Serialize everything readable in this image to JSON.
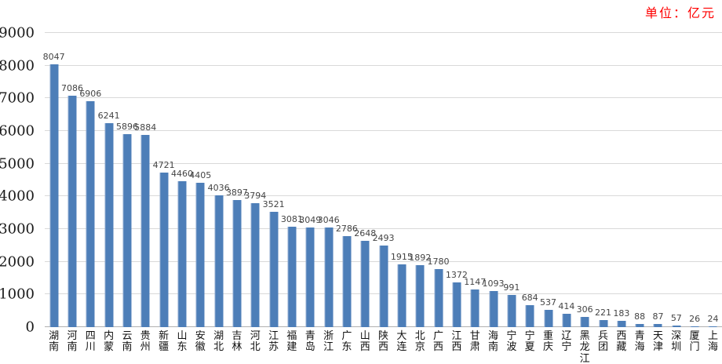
{
  "header": {
    "unit_label": "单位：亿元"
  },
  "colors": {
    "bar": "#4d7eb8",
    "bar_edge": "#8fabd0",
    "gridline": "#d9d9d9",
    "axis_line": "#b0b0b0",
    "unit_text": "#ff0000",
    "value_label": "#444444",
    "tick_label": "#1a1a1a"
  },
  "chart_data": {
    "type": "bar",
    "title": "",
    "unit": "单位：亿元",
    "categories": [
      "湖南",
      "河南",
      "四川",
      "内蒙",
      "云南",
      "贵州",
      "新疆",
      "山东",
      "安徽",
      "湖北",
      "吉林",
      "河北",
      "江苏",
      "福建",
      "青岛",
      "浙江",
      "广东",
      "山西",
      "陕西",
      "大连",
      "北京",
      "广西",
      "江西",
      "甘肃",
      "海南",
      "宁波",
      "宁夏",
      "重庆",
      "辽宁",
      "黑龙江",
      "兵团",
      "西藏",
      "青海",
      "天津",
      "深圳",
      "厦门",
      "上海"
    ],
    "values": [
      8047,
      7086,
      6906,
      6241,
      5896,
      5884,
      4721,
      4460,
      4405,
      4036,
      3897,
      3794,
      3521,
      3081,
      3049,
      3046,
      2786,
      2648,
      2493,
      1915,
      1892,
      1780,
      1372,
      1147,
      1093,
      991,
      684,
      537,
      414,
      306,
      221,
      183,
      88,
      87,
      57,
      26,
      24
    ],
    "ylim": [
      0,
      9000
    ],
    "yticks": [
      0,
      1000,
      2000,
      3000,
      4000,
      5000,
      6000,
      7000,
      8000,
      9000
    ],
    "grid": true,
    "legend": null,
    "xlabel": "",
    "ylabel": "",
    "bar_labels_visible": true,
    "category_orientation": "vertical"
  }
}
